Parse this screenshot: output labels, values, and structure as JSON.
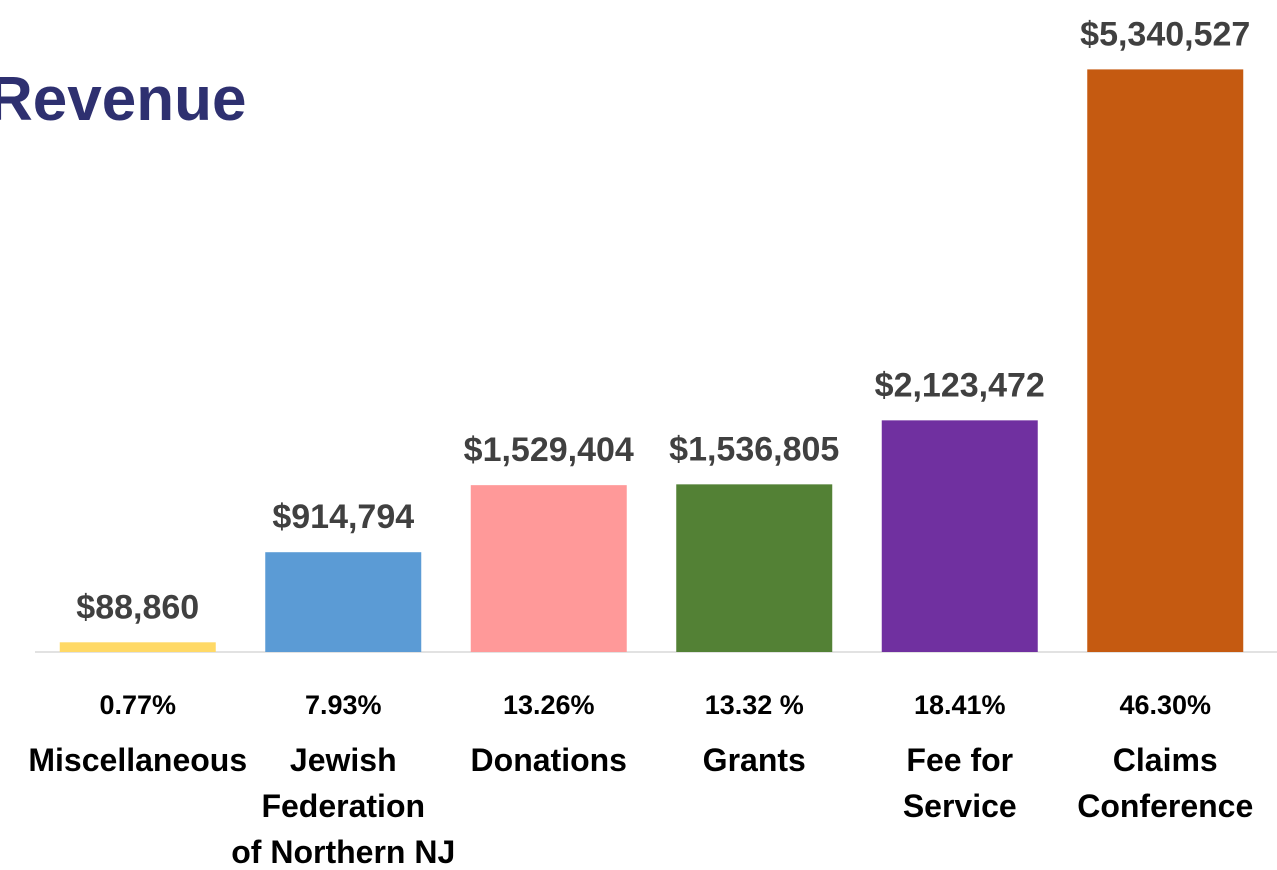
{
  "chart_data": {
    "type": "bar",
    "title": "Revenue",
    "categories": [
      "Miscellaneous",
      "Jewish\nFederation\nof Northern NJ",
      "Donations",
      "Grants",
      "Fee for\nService",
      "Claims\nConference"
    ],
    "percent_labels": [
      "0.77%",
      "7.93%",
      "13.26%",
      "13.32 %",
      "18.41%",
      "46.30%"
    ],
    "values": [
      88860,
      914794,
      1529404,
      1536805,
      2123472,
      5340527
    ],
    "value_labels": [
      "$88,860",
      "$914,794",
      "$1,529,404",
      "$1,536,805",
      "$2,123,472",
      "$5,340,527"
    ],
    "colors": [
      "#ffd966",
      "#5b9bd5",
      "#ff9999",
      "#538135",
      "#7030a0",
      "#c55a11"
    ],
    "ylim": [
      0,
      5500000
    ]
  }
}
